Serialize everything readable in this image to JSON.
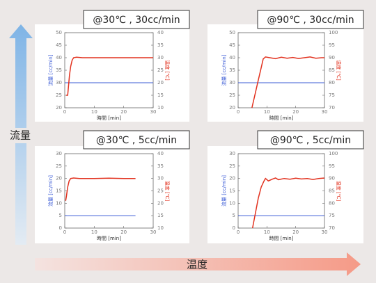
{
  "labels": {
    "vertical_arrow": "流量",
    "horizontal_arrow": "温度"
  },
  "chart_data": [
    {
      "type": "line",
      "title": "@30℃ , 30cc/min",
      "xlabel": "時間 [min]",
      "ylabel": "流量 [cc/min]",
      "y2label": "温度 [℃]",
      "xlim": [
        0,
        30
      ],
      "xticks": [
        0,
        10,
        20,
        30
      ],
      "ylim": [
        20,
        50
      ],
      "yticks": [
        20,
        25,
        30,
        35,
        40,
        45,
        50
      ],
      "y2lim": [
        10,
        40
      ],
      "y2ticks": [
        10,
        15,
        20,
        25,
        30,
        35,
        40
      ],
      "series": [
        {
          "color": "#3b5bd6",
          "x": [
            0,
            30
          ],
          "values": [
            30,
            30
          ]
        },
        {
          "color": "#e2321f",
          "axis": "y2",
          "x": [
            0.5,
            1,
            1.3,
            1.6,
            2,
            2.5,
            3,
            4,
            6,
            10,
            15,
            20,
            25,
            30
          ],
          "values": [
            15,
            15,
            19,
            23,
            26.5,
            29,
            30,
            30.2,
            30,
            30,
            30,
            30,
            30,
            30
          ]
        }
      ]
    },
    {
      "type": "line",
      "title": "@90℃ , 30cc/min",
      "xlabel": "時間 [min]",
      "ylabel": "流量 [cc/min]",
      "y2label": "温度 [℃]",
      "xlim": [
        0,
        30
      ],
      "xticks": [
        0,
        10,
        20,
        30
      ],
      "ylim": [
        20,
        50
      ],
      "yticks": [
        20,
        25,
        30,
        35,
        40,
        45,
        50
      ],
      "y2lim": [
        70,
        100
      ],
      "y2ticks": [
        70,
        75,
        80,
        85,
        90,
        95,
        100
      ],
      "series": [
        {
          "color": "#3b5bd6",
          "x": [
            0,
            30
          ],
          "values": [
            30,
            30
          ]
        },
        {
          "color": "#e2321f",
          "axis": "y2",
          "x": [
            4.8,
            6,
            7,
            8,
            8.7,
            9.5,
            11,
            13,
            15,
            17,
            19,
            21,
            23,
            25,
            27,
            29,
            30
          ],
          "values": [
            70,
            76,
            81,
            86,
            89.5,
            90.3,
            90,
            89.6,
            90.2,
            89.8,
            90.1,
            89.7,
            90,
            90.3,
            89.8,
            90,
            90
          ]
        }
      ]
    },
    {
      "type": "line",
      "title": "@30℃ , 5cc/min",
      "xlabel": "時間 [min]",
      "ylabel": "流量 [cc/min]",
      "y2label": "温度 [℃]",
      "xlim": [
        0,
        30
      ],
      "xticks": [
        0,
        10,
        20,
        30
      ],
      "ylim": [
        0,
        30
      ],
      "yticks": [
        0,
        5,
        10,
        15,
        20,
        25,
        30
      ],
      "y2lim": [
        10,
        40
      ],
      "y2ticks": [
        10,
        15,
        20,
        25,
        30,
        35,
        40
      ],
      "series": [
        {
          "color": "#3b5bd6",
          "x": [
            0,
            24
          ],
          "values": [
            5,
            5
          ]
        },
        {
          "color": "#e2321f",
          "axis": "y2",
          "x": [
            0.3,
            0.6,
            1,
            1.5,
            2,
            3,
            5,
            10,
            15,
            20,
            24
          ],
          "values": [
            21,
            23,
            26.5,
            29,
            30,
            30.2,
            30,
            30,
            30.1,
            30,
            30
          ]
        }
      ]
    },
    {
      "type": "line",
      "title": "@90℃ , 5cc/min",
      "xlabel": "時間 [min]",
      "ylabel": "流量 [cc/min]",
      "y2label": "温度 [℃]",
      "xlim": [
        0,
        30
      ],
      "xticks": [
        0,
        10,
        20,
        30
      ],
      "ylim": [
        0,
        30
      ],
      "yticks": [
        0,
        5,
        10,
        15,
        20,
        25,
        30
      ],
      "y2lim": [
        70,
        100
      ],
      "y2ticks": [
        70,
        75,
        80,
        85,
        90,
        95,
        100
      ],
      "series": [
        {
          "color": "#3b5bd6",
          "x": [
            0,
            30
          ],
          "values": [
            5,
            5
          ]
        },
        {
          "color": "#e2321f",
          "axis": "y2",
          "x": [
            5,
            6,
            7,
            8,
            9,
            9.5,
            10.5,
            12,
            13,
            14,
            16,
            18,
            20,
            22,
            24,
            26,
            28,
            30
          ],
          "values": [
            70,
            76,
            82,
            86.5,
            89,
            90,
            89,
            89.8,
            90.2,
            89.5,
            90,
            89.7,
            90.1,
            89.8,
            90,
            89.6,
            90,
            90.2
          ]
        }
      ]
    }
  ]
}
